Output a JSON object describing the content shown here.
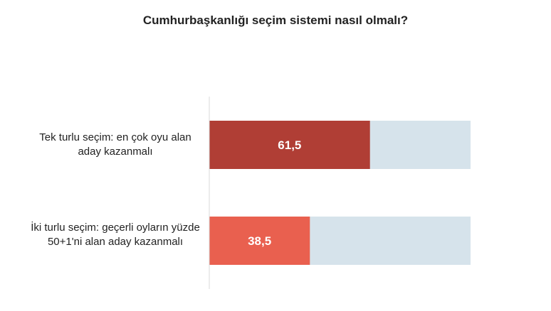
{
  "chart_data": {
    "type": "bar",
    "orientation": "horizontal",
    "title": "Cumhurbaşkanlığı seçim sistemi nasıl olmalı?",
    "categories": [
      "Tek turlu seçim: en çok oyu alan aday kazanmalı",
      "İki turlu seçim: geçerli oyların yüzde 50+1'ni alan aday kazanmalı"
    ],
    "values": [
      61.5,
      38.5
    ],
    "data_labels": [
      "61,5",
      "38,5"
    ],
    "xlim": [
      0,
      100
    ],
    "colors": [
      "#b03e35",
      "#e9604f"
    ],
    "background_bar_color": "#d6e3eb",
    "axis_color": "#d9d9d9",
    "grid": false,
    "legend": "none"
  }
}
